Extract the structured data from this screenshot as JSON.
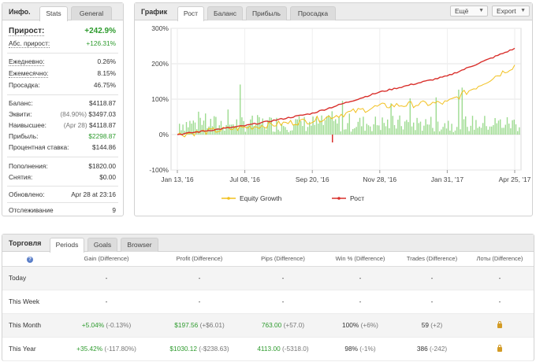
{
  "info": {
    "title": "Инфо.",
    "tabs": [
      "Stats",
      "General"
    ],
    "gain_label": "Прирост:",
    "gain_value": "+242.9%",
    "abs_gain_label": "Абс. прирост:",
    "abs_gain_value": "+126.31%",
    "daily_label": "Ежедневно:",
    "daily_value": "0.26%",
    "monthly_label": "Ежемесячно:",
    "monthly_value": "8.15%",
    "drawdown_label": "Просадка:",
    "drawdown_value": "46.75%",
    "balance_label": "Баланс:",
    "balance_value": "$4118.87",
    "equity_label": "Эквити:",
    "equity_note": "(84.90%)",
    "equity_value": "$3497.03",
    "highest_label": "Наивысшее:",
    "highest_note": "(Apr 28)",
    "highest_value": "$4118.87",
    "profit_label": "Прибыль:",
    "profit_value": "$2298.87",
    "interest_label": "Процентная ставка:",
    "interest_value": "$144.86",
    "deposits_label": "Пополнения:",
    "deposits_value": "$1820.00",
    "withdrawals_label": "Снятия:",
    "withdrawals_value": "$0.00",
    "updated_label": "Обновлено:",
    "updated_value": "Apr 28 at 23:16",
    "tracking_label": "Отслеживание",
    "tracking_value": "9"
  },
  "chart_panel": {
    "title": "График",
    "tabs": [
      "Рост",
      "Баланс",
      "Прибыль",
      "Просадка"
    ],
    "menu_label": "Ещё",
    "export_label": "Export"
  },
  "chart_data": {
    "type": "line",
    "y_ticks": [
      "300%",
      "200%",
      "100%",
      "0%",
      "-100%"
    ],
    "x_ticks": [
      "Jan 13, '16",
      "Jul 08, '16",
      "Sep 20, '16",
      "Nov 28, '16",
      "Jan 31, '17",
      "Apr 25, '17"
    ],
    "ylim": [
      -100,
      300
    ],
    "grid": true,
    "legend_position": "bottom",
    "series": [
      {
        "name": "Equity Growth",
        "color": "#f2c01e",
        "x": [
          "Jan 13, '16",
          "Jul 08, '16",
          "Sep 20, '16",
          "Nov 28, '16",
          "Jan 31, '17",
          "Apr 25, '17"
        ],
        "values": [
          0,
          20,
          40,
          80,
          90,
          195
        ]
      },
      {
        "name": "Рост",
        "color": "#d9302c",
        "x": [
          "Jan 13, '16",
          "Jul 08, '16",
          "Sep 20, '16",
          "Nov 28, '16",
          "Jan 31, '17",
          "Apr 25, '17"
        ],
        "values": [
          0,
          25,
          60,
          120,
          165,
          243
        ]
      }
    ],
    "bars_color": "#7ccf6b"
  },
  "trading": {
    "title": "Торговля",
    "tabs": [
      "Periods",
      "Goals",
      "Browser"
    ],
    "help_icon": "?",
    "columns": [
      "Gain (Difference)",
      "Profit (Difference)",
      "Pips (Difference)",
      "Win % (Difference)",
      "Trades (Difference)",
      "Лоты (Difference)"
    ],
    "rows": [
      {
        "period": "Today",
        "gain": "-",
        "gain_diff": "",
        "profit": "-",
        "profit_diff": "",
        "pips": "-",
        "pips_diff": "",
        "win": "-",
        "win_diff": "",
        "trades": "-",
        "trades_diff": "",
        "lots": "-"
      },
      {
        "period": "This Week",
        "gain": "-",
        "gain_diff": "",
        "profit": "-",
        "profit_diff": "",
        "pips": "-",
        "pips_diff": "",
        "win": "-",
        "win_diff": "",
        "trades": "-",
        "trades_diff": "",
        "lots": "-"
      },
      {
        "period": "This Month",
        "gain": "+5.04%",
        "gain_diff": "(-0.13%)",
        "profit": "$197.56",
        "profit_diff": "(+$6.01)",
        "pips": "763.00",
        "pips_diff": "(+57.0)",
        "win": "100%",
        "win_diff": "(+6%)",
        "trades": "59",
        "trades_diff": "(+2)",
        "lots": ""
      },
      {
        "period": "This Year",
        "gain": "+35.42%",
        "gain_diff": "(-117.80%)",
        "profit": "$1030.12",
        "profit_diff": "(-$238.63)",
        "pips": "4113.00",
        "pips_diff": "(-5318.0)",
        "win": "98%",
        "win_diff": "(-1%)",
        "trades": "386",
        "trades_diff": "(-242)",
        "lots": ""
      }
    ]
  }
}
